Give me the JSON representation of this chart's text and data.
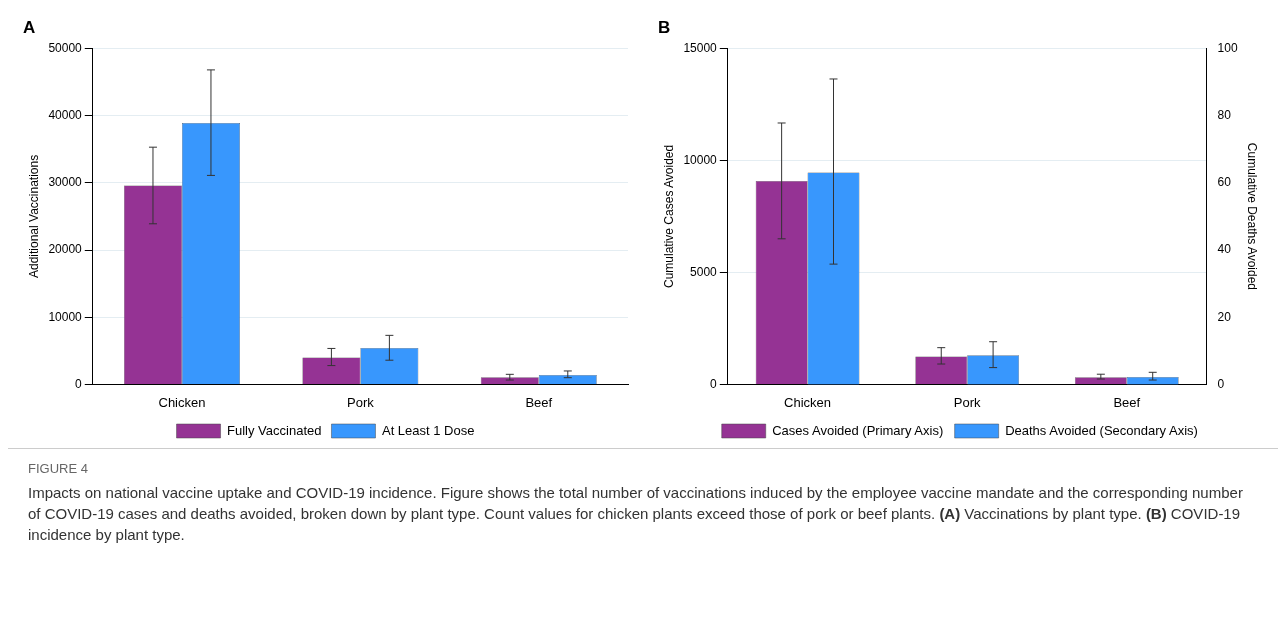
{
  "chart_data": [
    {
      "type": "bar",
      "title": "A",
      "categories": [
        "Chicken",
        "Pork",
        "Beef"
      ],
      "ylabel": "Additional Vaccinations",
      "ylim": [
        0,
        50000
      ],
      "yticks": [
        0,
        10000,
        20000,
        30000,
        40000,
        50000
      ],
      "grid": "y",
      "legend": "bottom",
      "series": [
        {
          "name": "Fully Vaccinated",
          "color": "#953394",
          "values": [
            29600,
            4000,
            1050
          ],
          "errors": [
            [
              23900,
              35300
            ],
            [
              2800,
              5350
            ],
            [
              650,
              1500
            ]
          ]
        },
        {
          "name": "At Least 1 Dose",
          "color": "#3897fd",
          "values": [
            38900,
            5400,
            1400
          ],
          "errors": [
            [
              31100,
              46800
            ],
            [
              3600,
              7300
            ],
            [
              1000,
              2000
            ]
          ]
        }
      ]
    },
    {
      "type": "bar",
      "title": "B",
      "categories": [
        "Chicken",
        "Pork",
        "Beef"
      ],
      "ylabel": "Cumulative Cases Avoided",
      "y2label": "Cumulative Deaths Avoided",
      "ylim": [
        0,
        15000
      ],
      "yticks": [
        0,
        5000,
        10000,
        15000
      ],
      "y2lim": [
        0,
        100
      ],
      "y2ticks": [
        0,
        20,
        40,
        60,
        80,
        100
      ],
      "grid": "y",
      "legend": "bottom",
      "series": [
        {
          "name": "Cases Avoided (Primary Axis)",
          "color": "#953394",
          "values": [
            9080,
            1250,
            320
          ],
          "errors": [
            [
              6500,
              11670
            ],
            [
              910,
              1640
            ],
            [
              240,
              455
            ]
          ]
        },
        {
          "name": "Deaths Avoided (Secondary Axis)",
          "color": "#3897fd",
          "axis": "y2",
          "values": [
            63.1,
            8.7,
            2.2
          ],
          "errors": [
            [
              35.8,
              90.9
            ],
            [
              5.0,
              12.7
            ],
            [
              1.3,
              3.6
            ]
          ]
        }
      ]
    },
    {
      "type": "other",
      "title": "FIGURE 4",
      "annotations": [
        "Impacts on national vaccine uptake and COVID-19 incidence. Figure shows the total number of vaccinations induced by the employee vaccine mandate and the corresponding number of COVID-19 cases and deaths avoided, broken down by plant type. Count values for chicken plants exceed those of pork or beef plants. **(A)** Vaccinations by plant type. **(B)** COVID-19 incidence by plant type."
      ]
    }
  ]
}
